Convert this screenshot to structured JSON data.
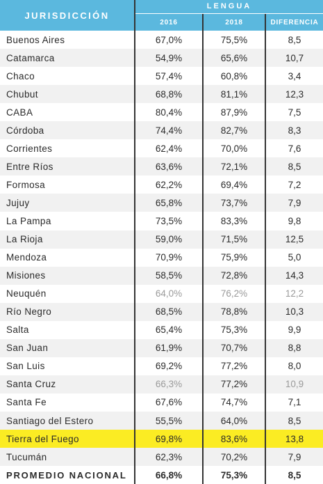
{
  "header": {
    "jurisdiccion": "JURISDICCIÓN",
    "lengua": "LENGUA",
    "col_2016": "2016",
    "col_2018": "2018",
    "col_diferencia": "DIFERENCIA"
  },
  "rows": [
    {
      "name": "Buenos Aires",
      "v2016": "67,0%",
      "v2018": "75,5%",
      "dif": "8,5"
    },
    {
      "name": "Catamarca",
      "v2016": "54,9%",
      "v2018": "65,6%",
      "dif": "10,7"
    },
    {
      "name": "Chaco",
      "v2016": "57,4%",
      "v2018": "60,8%",
      "dif": "3,4"
    },
    {
      "name": "Chubut",
      "v2016": "68,8%",
      "v2018": "81,1%",
      "dif": "12,3"
    },
    {
      "name": "CABA",
      "v2016": "80,4%",
      "v2018": "87,9%",
      "dif": "7,5"
    },
    {
      "name": "Córdoba",
      "v2016": "74,4%",
      "v2018": "82,7%",
      "dif": "8,3"
    },
    {
      "name": "Corrientes",
      "v2016": "62,4%",
      "v2018": "70,0%",
      "dif": "7,6"
    },
    {
      "name": "Entre Ríos",
      "v2016": "63,6%",
      "v2018": "72,1%",
      "dif": "8,5"
    },
    {
      "name": "Formosa",
      "v2016": "62,2%",
      "v2018": "69,4%",
      "dif": "7,2"
    },
    {
      "name": "Jujuy",
      "v2016": "65,8%",
      "v2018": "73,7%",
      "dif": "7,9"
    },
    {
      "name": "La Pampa",
      "v2016": "73,5%",
      "v2018": "83,3%",
      "dif": "9,8"
    },
    {
      "name": "La Rioja",
      "v2016": "59,0%",
      "v2018": "71,5%",
      "dif": "12,5"
    },
    {
      "name": "Mendoza",
      "v2016": "70,9%",
      "v2018": "75,9%",
      "dif": "5,0"
    },
    {
      "name": "Misiones",
      "v2016": "58,5%",
      "v2018": "72,8%",
      "dif": "14,3"
    },
    {
      "name": "Neuquén",
      "v2016": "64,0%",
      "v2018": "76,2%",
      "dif": "12,2"
    },
    {
      "name": "Río Negro",
      "v2016": "68,5%",
      "v2018": "78,8%",
      "dif": "10,3"
    },
    {
      "name": "Salta",
      "v2016": "65,4%",
      "v2018": "75,3%",
      "dif": "9,9"
    },
    {
      "name": "San Juan",
      "v2016": "61,9%",
      "v2018": "70,7%",
      "dif": "8,8"
    },
    {
      "name": "San Luis",
      "v2016": "69,2%",
      "v2018": "77,2%",
      "dif": "8,0"
    },
    {
      "name": "Santa Cruz",
      "v2016": "66,3%",
      "v2018": "77,2%",
      "dif": "10,9"
    },
    {
      "name": "Santa Fe",
      "v2016": "67,6%",
      "v2018": "74,7%",
      "dif": "7,1"
    },
    {
      "name": "Santiago del Estero",
      "v2016": "55,5%",
      "v2018": "64,0%",
      "dif": "8,5"
    },
    {
      "name": "Tierra del Fuego",
      "v2016": "69,8%",
      "v2018": "83,6%",
      "dif": "13,8"
    },
    {
      "name": "Tucumán",
      "v2016": "62,3%",
      "v2018": "70,2%",
      "dif": "7,9"
    }
  ],
  "total": {
    "name": "PROMEDIO NACIONAL",
    "v2016": "66,8%",
    "v2018": "75,3%",
    "dif": "8,5"
  },
  "colors": {
    "header_bg": "#5bb8de",
    "highlight": "#fbec23",
    "alt_row": "#f1f1f1",
    "faded_text": "#9a9a9a"
  }
}
